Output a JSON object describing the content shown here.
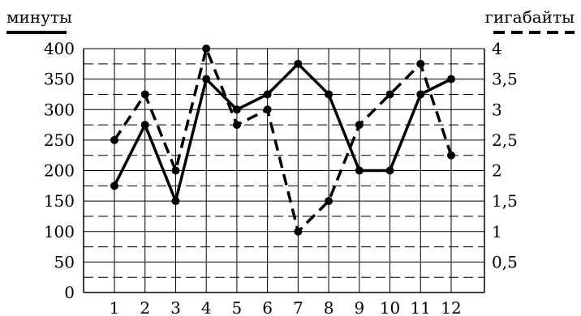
{
  "chart_data": {
    "type": "line",
    "categories": [
      "1",
      "2",
      "3",
      "4",
      "5",
      "6",
      "7",
      "8",
      "9",
      "10",
      "11",
      "12"
    ],
    "left_axis": {
      "label": "минуты",
      "ylim": [
        0,
        400
      ],
      "ticks": [
        "0",
        "50",
        "100",
        "150",
        "200",
        "250",
        "300",
        "350",
        "400"
      ]
    },
    "right_axis": {
      "label": "гигабайты",
      "ylim": [
        0,
        4
      ],
      "ticks": [
        "0,5",
        "1",
        "1,5",
        "2",
        "2,5",
        "3",
        "3,5",
        "4"
      ]
    },
    "series": [
      {
        "axis": "left",
        "line_style": "solid",
        "values": [
          175,
          275,
          150,
          350,
          300,
          325,
          375,
          325,
          200,
          200,
          325,
          350
        ]
      },
      {
        "axis": "right",
        "line_style": "dashed",
        "values": [
          2.5,
          3.25,
          2.0,
          4.0,
          2.75,
          3.0,
          1.0,
          1.5,
          2.75,
          3.25,
          3.75,
          2.25
        ]
      }
    ],
    "grid": true,
    "legend": "top axis labels"
  }
}
